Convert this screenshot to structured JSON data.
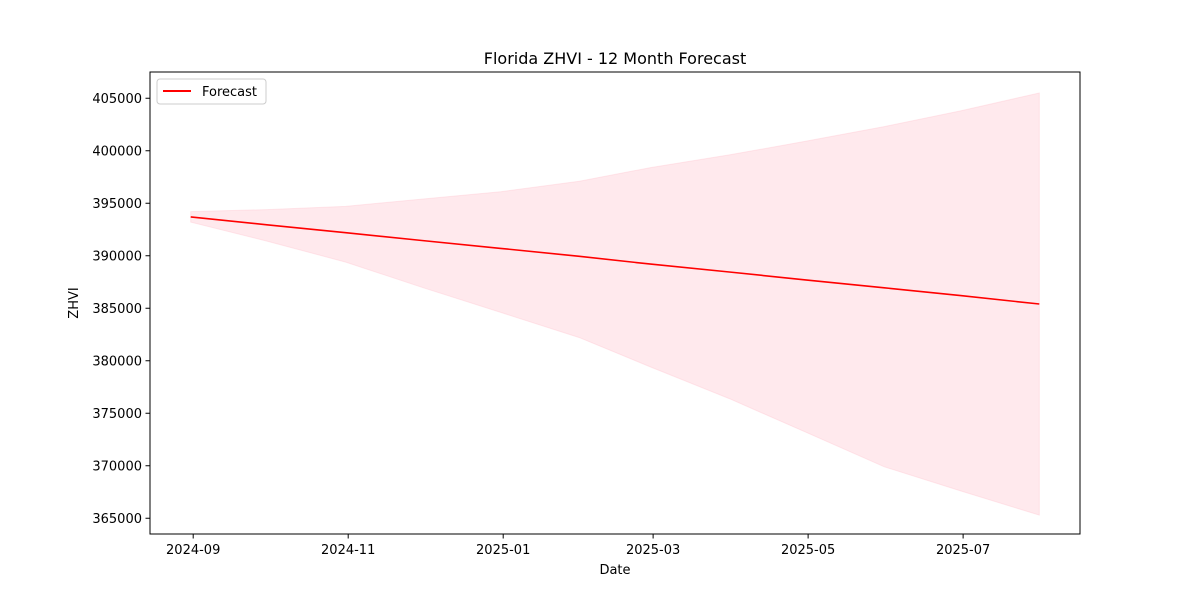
{
  "chart_data": {
    "type": "line",
    "title": "Florida ZHVI - 12 Month Forecast",
    "xlabel": "Date",
    "ylabel": "ZHVI",
    "x_ticks": [
      "2024-09",
      "2024-11",
      "2025-01",
      "2025-03",
      "2025-05",
      "2025-07"
    ],
    "y_ticks": [
      365000,
      370000,
      375000,
      380000,
      385000,
      390000,
      395000,
      400000,
      405000
    ],
    "xlim": [
      "2024-08-15",
      "2025-08-16"
    ],
    "ylim": [
      363500,
      407500
    ],
    "grid": false,
    "legend_position": "top-left",
    "x": [
      "2024-08-31",
      "2024-09-30",
      "2024-10-31",
      "2024-11-30",
      "2024-12-31",
      "2025-01-31",
      "2025-02-28",
      "2025-03-31",
      "2025-04-30",
      "2025-05-31",
      "2025-06-30",
      "2025-07-31"
    ],
    "series": [
      {
        "name": "Forecast",
        "color": "#ff0000",
        "values": [
          393700,
          392950,
          392200,
          391450,
          390700,
          389950,
          389200,
          388450,
          387700,
          386950,
          386200,
          385400
        ]
      }
    ],
    "confidence_band": {
      "color": "#ffc0cb",
      "lower": [
        393200,
        391400,
        389400,
        387000,
        384600,
        382200,
        379400,
        376400,
        373200,
        369900,
        367600,
        365300
      ],
      "upper": [
        394200,
        394400,
        394700,
        395400,
        396100,
        397100,
        398400,
        399600,
        400900,
        402300,
        403800,
        405500
      ]
    }
  }
}
